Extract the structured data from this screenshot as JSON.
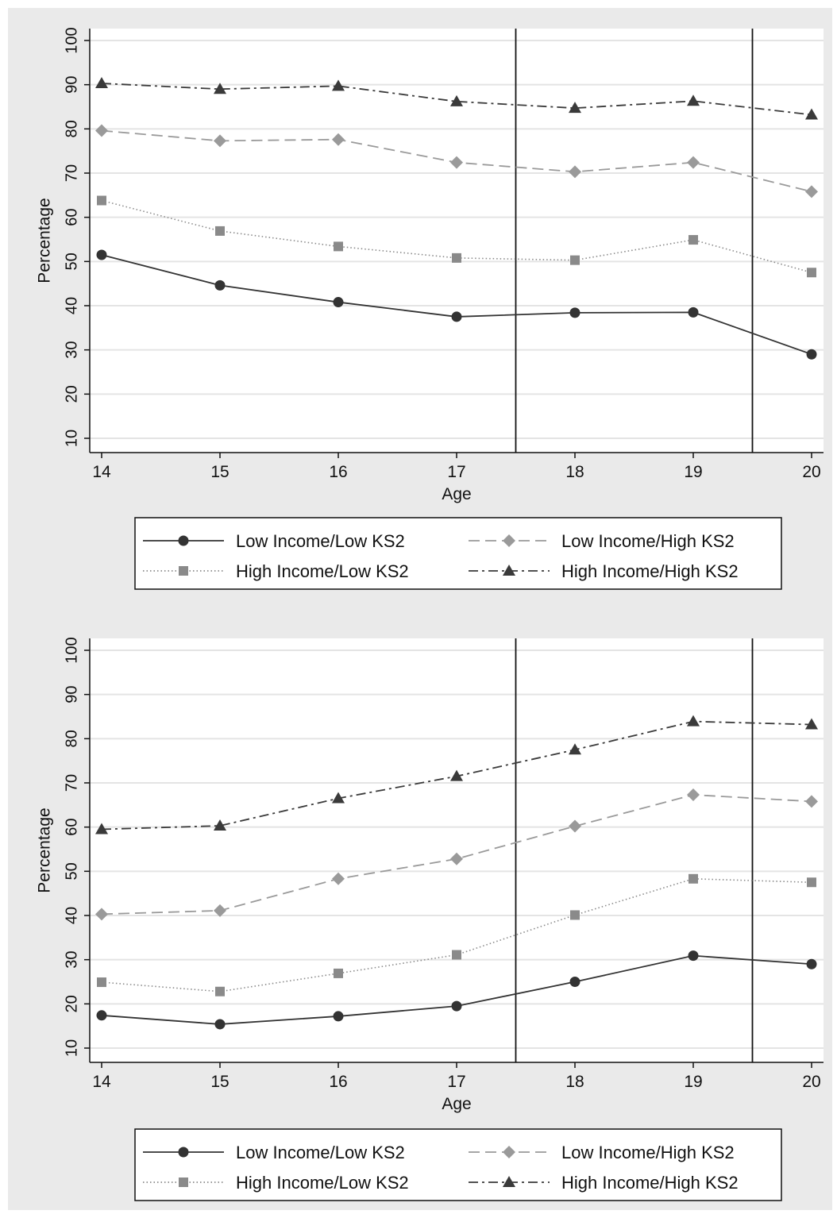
{
  "chart_data": [
    {
      "type": "line",
      "xlabel": "Age",
      "ylabel": "Percentage",
      "x": [
        14,
        15,
        16,
        17,
        18,
        19,
        20
      ],
      "x_ticks": [
        "14",
        "15",
        "16",
        "17",
        "18",
        "19",
        "20"
      ],
      "y_ticks": [
        "10",
        "20",
        "30",
        "40",
        "50",
        "60",
        "70",
        "80",
        "90",
        "100"
      ],
      "xlim": [
        14,
        20
      ],
      "ylim": [
        10,
        100
      ],
      "grid": true,
      "vertical_lines_at": [
        17.5,
        19.5
      ],
      "legend_position": "bottom",
      "series": [
        {
          "name": "Low Income/Low KS2",
          "values": [
            51.5,
            44.6,
            40.8,
            37.5,
            38.4,
            38.5,
            29.0
          ],
          "color": "#333333",
          "marker": "circle",
          "dash": "solid"
        },
        {
          "name": "Low Income/High KS2",
          "values": [
            79.6,
            77.3,
            77.6,
            72.4,
            70.3,
            72.4,
            65.8
          ],
          "color": "#9a9a9a",
          "marker": "diamond",
          "dash": "dashed"
        },
        {
          "name": "High Income/Low KS2",
          "values": [
            63.8,
            56.9,
            53.4,
            50.8,
            50.3,
            54.9,
            47.5
          ],
          "color": "#8a8a8a",
          "marker": "square",
          "dash": "dotted"
        },
        {
          "name": "High Income/High KS2",
          "values": [
            90.3,
            89.0,
            89.7,
            86.2,
            84.7,
            86.3,
            83.2
          ],
          "color": "#3a3a3a",
          "marker": "triangle",
          "dash": "dashdot"
        }
      ]
    },
    {
      "type": "line",
      "xlabel": "Age",
      "ylabel": "Percentage",
      "x": [
        14,
        15,
        16,
        17,
        18,
        19,
        20
      ],
      "x_ticks": [
        "14",
        "15",
        "16",
        "17",
        "18",
        "19",
        "20"
      ],
      "y_ticks": [
        "10",
        "20",
        "30",
        "40",
        "50",
        "60",
        "70",
        "80",
        "90",
        "100"
      ],
      "xlim": [
        14,
        20
      ],
      "ylim": [
        10,
        100
      ],
      "grid": true,
      "vertical_lines_at": [
        17.5,
        19.5
      ],
      "legend_position": "bottom",
      "series": [
        {
          "name": "Low Income/Low KS2",
          "values": [
            17.4,
            15.4,
            17.2,
            19.5,
            25.0,
            30.9,
            29.0
          ],
          "color": "#333333",
          "marker": "circle",
          "dash": "solid"
        },
        {
          "name": "Low Income/High KS2",
          "values": [
            40.3,
            41.1,
            48.3,
            52.8,
            60.2,
            67.3,
            65.8
          ],
          "color": "#9a9a9a",
          "marker": "diamond",
          "dash": "dashed"
        },
        {
          "name": "High Income/Low KS2",
          "values": [
            24.9,
            22.8,
            26.9,
            31.1,
            40.1,
            48.3,
            47.5
          ],
          "color": "#8a8a8a",
          "marker": "square",
          "dash": "dotted"
        },
        {
          "name": "High Income/High KS2",
          "values": [
            59.5,
            60.3,
            66.5,
            71.5,
            77.5,
            83.9,
            83.2
          ],
          "color": "#3a3a3a",
          "marker": "triangle",
          "dash": "dashdot"
        }
      ]
    }
  ]
}
